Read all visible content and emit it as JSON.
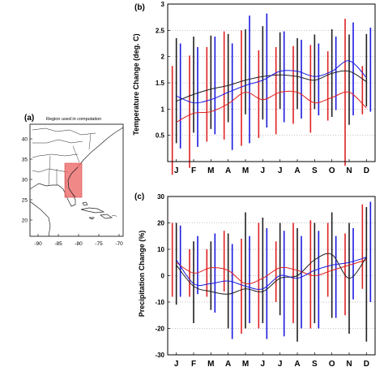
{
  "panels": {
    "a": {
      "tag": "(a)",
      "title": "Region used in computation",
      "yticks": [
        "40",
        "35",
        "30",
        "25",
        "20"
      ],
      "xticks": [
        "-90",
        "-85",
        "-80",
        "-75",
        "-70"
      ]
    },
    "b": {
      "tag": "(b)"
    },
    "c": {
      "tag": "(c)"
    }
  },
  "chart_data": [
    {
      "panel": "b",
      "type": "line",
      "ylabel": "Temperature Change (deg. C)",
      "ylim": [
        0,
        3
      ],
      "yticks": [
        "0.5",
        "1",
        "1.5",
        "2",
        "2.5",
        "3"
      ],
      "categories": [
        "J",
        "F",
        "M",
        "A",
        "M",
        "J",
        "J",
        "A",
        "S",
        "O",
        "N",
        "D"
      ],
      "grid": "horizontal dotted",
      "range_bars": [
        {
          "color": "#e02020",
          "low": [
            -0.25,
            -0.12,
            0.38,
            0.42,
            0.3,
            0.45,
            0.52,
            0.72,
            0.55,
            0.78,
            -0.08,
            0.9
          ],
          "high": [
            1.82,
            2.02,
            2.18,
            2.48,
            2.5,
            2.12,
            2.18,
            2.2,
            2.22,
            2.1,
            2.72,
            1.82
          ]
        },
        {
          "color": "#202020",
          "low": [
            0.35,
            0.55,
            0.62,
            0.75,
            0.9,
            0.8,
            1.0,
            1.0,
            1.0,
            0.85,
            0.7,
            1.05
          ],
          "high": [
            2.35,
            2.38,
            2.4,
            2.43,
            2.52,
            2.58,
            2.46,
            2.35,
            2.42,
            2.52,
            2.42,
            2.43
          ]
        },
        {
          "color": "#1a1adf",
          "low": [
            0.25,
            0.28,
            0.52,
            0.22,
            0.35,
            0.65,
            0.75,
            0.82,
            0.88,
            0.98,
            0.88,
            0.95
          ],
          "high": [
            2.25,
            2.18,
            2.38,
            2.25,
            2.78,
            2.82,
            2.48,
            2.32,
            2.25,
            2.38,
            2.65,
            2.55
          ]
        }
      ],
      "series": [
        {
          "color": "#e02020",
          "values": [
            0.75,
            0.92,
            0.95,
            1.1,
            1.32,
            1.18,
            1.32,
            1.32,
            1.12,
            1.22,
            1.32,
            1.02
          ]
        },
        {
          "color": "#202020",
          "values": [
            1.15,
            1.28,
            1.38,
            1.45,
            1.55,
            1.62,
            1.65,
            1.62,
            1.55,
            1.68,
            1.72,
            1.52
          ]
        },
        {
          "color": "#1a1adf",
          "values": [
            1.25,
            1.12,
            1.18,
            1.32,
            1.45,
            1.55,
            1.72,
            1.72,
            1.62,
            1.72,
            1.92,
            1.6
          ]
        }
      ]
    },
    {
      "panel": "c",
      "type": "line",
      "ylabel": "Precipitation Change (%)",
      "ylim": [
        -30,
        30
      ],
      "yticks": [
        "-30",
        "-20",
        "-10",
        "0",
        "10",
        "20",
        "30"
      ],
      "categories": [
        "J",
        "F",
        "M",
        "A",
        "M",
        "J",
        "J",
        "A",
        "S",
        "O",
        "N",
        "D"
      ],
      "grid": "horizontal dotted",
      "range_bars": [
        {
          "color": "#e02020",
          "low": [
            -8,
            -8,
            -8,
            -6,
            -22,
            -20,
            -10,
            -18,
            -20,
            -8,
            -15,
            -5
          ],
          "high": [
            20,
            10,
            10,
            17,
            14,
            20,
            13,
            20,
            21,
            20,
            16,
            27
          ]
        },
        {
          "color": "#202020",
          "low": [
            -11,
            -18,
            -13,
            -20,
            -20,
            -18,
            -15,
            -25,
            -18,
            -16,
            -22,
            -25
          ],
          "high": [
            20,
            13,
            13,
            16,
            24,
            22,
            20,
            18,
            20,
            24,
            20,
            26
          ]
        },
        {
          "color": "#1a1adf",
          "low": [
            -8,
            -7,
            -14,
            -24,
            -18,
            -24,
            -23,
            -20,
            -20,
            -16,
            -9,
            -10
          ],
          "high": [
            19,
            15,
            16,
            12,
            15,
            18,
            17,
            15,
            17,
            15,
            18,
            28
          ]
        }
      ],
      "series": [
        {
          "color": "#e02020",
          "values": [
            5,
            1,
            3,
            2,
            -3,
            -1,
            3,
            2,
            0,
            2,
            4,
            6
          ]
        },
        {
          "color": "#202020",
          "values": [
            4,
            -4,
            -6,
            -7,
            -5,
            -6,
            -1,
            0,
            6,
            8,
            -1,
            7
          ]
        },
        {
          "color": "#1a1adf",
          "values": [
            6,
            -3,
            -3,
            -2,
            -4,
            -5,
            0,
            -1,
            2,
            4,
            5,
            7
          ]
        }
      ]
    }
  ]
}
